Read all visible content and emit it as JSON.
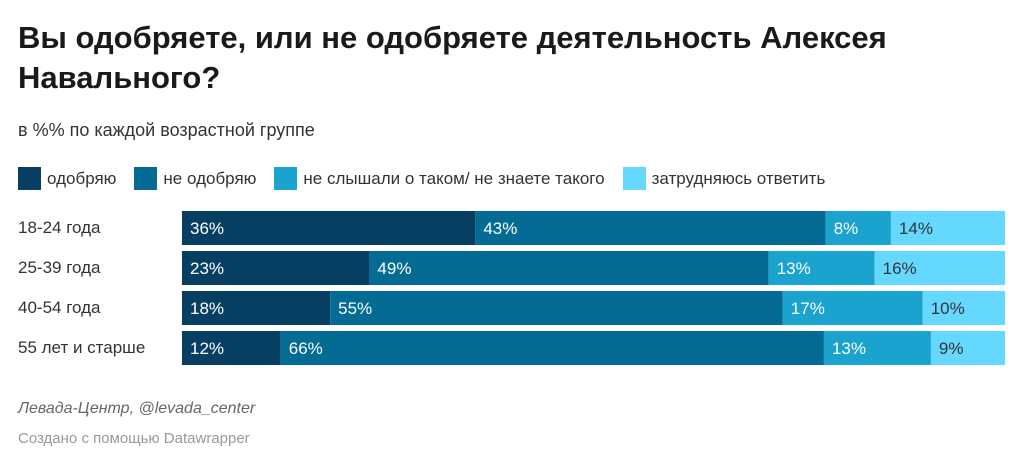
{
  "chart_data": {
    "type": "bar",
    "orientation": "horizontal",
    "stacked": true,
    "title": "Вы одобряете, или не одобряете деятельность Алексея Навального?",
    "subtitle": "в %% по каждой возрастной группе",
    "categories": [
      "18-24 года",
      "25-39 года",
      "40-54 года",
      "55 лет и старше"
    ],
    "series": [
      {
        "name": "одобряю",
        "color": "#073f63",
        "values": [
          36,
          23,
          18,
          12
        ]
      },
      {
        "name": "не одобряю",
        "color": "#046c94",
        "values": [
          43,
          49,
          55,
          66
        ]
      },
      {
        "name": "не слышали о таком/ не знаете такого",
        "color": "#1ba3d0",
        "values": [
          8,
          13,
          17,
          13
        ]
      },
      {
        "name": "затрудняюсь ответить",
        "color": "#65d8ff",
        "values": [
          14,
          16,
          10,
          9
        ]
      }
    ],
    "value_suffix": "%",
    "legend": "top",
    "grid": false
  },
  "source": "Левада-Центр, @levada_center",
  "credit": "Создано с помощью Datawrapper"
}
